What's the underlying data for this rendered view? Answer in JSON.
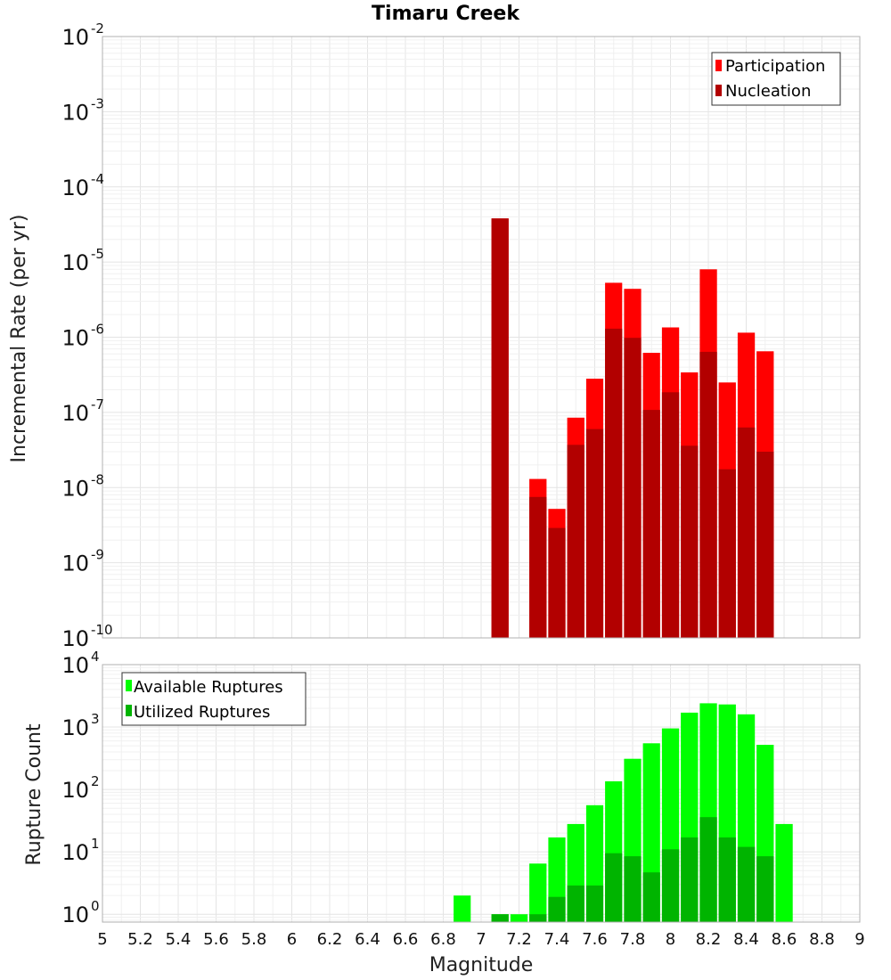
{
  "title": "Timaru Creek",
  "chart_data": [
    {
      "type": "bar",
      "name": "rate-panel",
      "ylabel": "Incremental Rate (per yr)",
      "yscale": "log",
      "ylim": [
        1e-10,
        0.01
      ],
      "xlim": [
        5,
        9
      ],
      "bar_width": 0.1,
      "grid": true,
      "legend_position": "top-right",
      "series": [
        {
          "name": "Participation",
          "color": "#ff0000",
          "x": [
            7.1,
            7.3,
            7.4,
            7.5,
            7.6,
            7.7,
            7.8,
            7.9,
            8.0,
            8.1,
            8.2,
            8.3,
            8.4,
            8.5
          ],
          "values": [
            3.8e-05,
            1.3e-08,
            5.2e-09,
            8.5e-08,
            2.8e-07,
            5.3e-06,
            4.4e-06,
            6.2e-07,
            1.35e-06,
            3.4e-07,
            8e-06,
            2.5e-07,
            1.15e-06,
            6.5e-07
          ]
        },
        {
          "name": "Nucleation",
          "color": "#b20000",
          "x": [
            7.1,
            7.3,
            7.4,
            7.5,
            7.6,
            7.7,
            7.8,
            7.9,
            8.0,
            8.1,
            8.2,
            8.3,
            8.4,
            8.5
          ],
          "values": [
            3.8e-05,
            7.5e-09,
            2.9e-09,
            3.7e-08,
            6e-08,
            1.3e-06,
            9.8e-07,
            1.08e-07,
            1.85e-07,
            3.6e-08,
            6.4e-07,
            1.75e-08,
            6.3e-08,
            3e-08
          ]
        }
      ]
    },
    {
      "type": "bar",
      "name": "count-panel",
      "ylabel": "Rupture Count",
      "xlabel": "Magnitude",
      "yscale": "log",
      "ylim": [
        0.75,
        10000
      ],
      "xlim": [
        5,
        9
      ],
      "bar_width": 0.1,
      "grid": true,
      "legend_position": "top-left",
      "series": [
        {
          "name": "Available Ruptures",
          "color": "#00ff00",
          "x": [
            6.9,
            7.1,
            7.2,
            7.3,
            7.4,
            7.5,
            7.6,
            7.7,
            7.8,
            7.9,
            8.0,
            8.1,
            8.2,
            8.3,
            8.4,
            8.5,
            8.6
          ],
          "values": [
            2,
            1,
            1,
            6.5,
            17,
            28,
            56,
            135,
            310,
            550,
            950,
            1700,
            2400,
            2300,
            1600,
            520,
            28
          ]
        },
        {
          "name": "Utilized Ruptures",
          "color": "#00b400",
          "x": [
            7.1,
            7.3,
            7.4,
            7.5,
            7.6,
            7.7,
            7.8,
            7.9,
            8.0,
            8.1,
            8.2,
            8.3,
            8.4,
            8.5
          ],
          "values": [
            1,
            1,
            1.9,
            2.9,
            2.9,
            9.5,
            8.5,
            4.7,
            11,
            17,
            36,
            17,
            12,
            8.5
          ]
        }
      ]
    }
  ],
  "xticks": [
    "5",
    "5.2",
    "5.4",
    "5.6",
    "5.8",
    "6",
    "6.2",
    "6.4",
    "6.6",
    "6.8",
    "7",
    "7.2",
    "7.4",
    "7.6",
    "7.8",
    "8",
    "8.2",
    "8.4",
    "8.6",
    "8.8",
    "9"
  ],
  "top_yticks": [
    {
      "base": "10",
      "exp": "-10"
    },
    {
      "base": "10",
      "exp": "-9"
    },
    {
      "base": "10",
      "exp": "-8"
    },
    {
      "base": "10",
      "exp": "-7"
    },
    {
      "base": "10",
      "exp": "-6"
    },
    {
      "base": "10",
      "exp": "-5"
    },
    {
      "base": "10",
      "exp": "-4"
    },
    {
      "base": "10",
      "exp": "-3"
    },
    {
      "base": "10",
      "exp": "-2"
    }
  ],
  "bottom_yticks": [
    {
      "base": "10",
      "exp": "0"
    },
    {
      "base": "10",
      "exp": "1"
    },
    {
      "base": "10",
      "exp": "2"
    },
    {
      "base": "10",
      "exp": "3"
    },
    {
      "base": "10",
      "exp": "4"
    }
  ]
}
